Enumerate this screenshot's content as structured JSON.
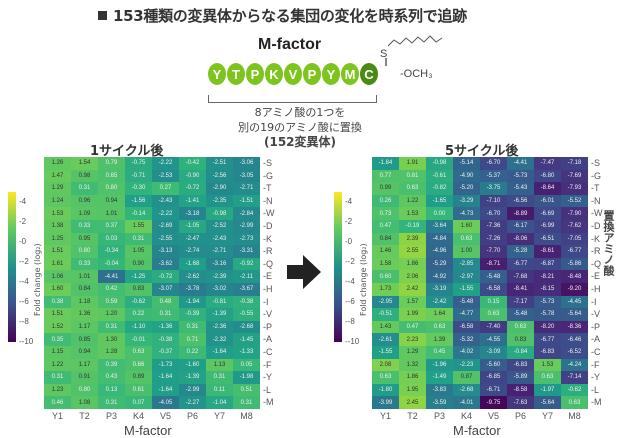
{
  "header": {
    "title": "153種類の変異体からなる集団の変化を時系列で追跡"
  },
  "peptide": {
    "name": "M-factor",
    "residues": [
      "Y",
      "T",
      "P",
      "K",
      "V",
      "P",
      "Y",
      "M"
    ],
    "terminal_residue": "C",
    "s_label": "S",
    "methyl_label": "-OCH₃",
    "note_line1": "8アミノ酸の1つを",
    "note_line2": "別の19のアミノ酸に置換",
    "note_line3": "(152変異体)"
  },
  "arrow_icon": "right-arrow",
  "side_label": "置換アミノ酸",
  "chart_data": [
    {
      "type": "heatmap",
      "title": "1サイクル後",
      "xlabel": "M-factor",
      "ylabel": "置換アミノ酸",
      "colorbar_label": "Fold change (log₂)",
      "colorbar_ticks": [
        "4",
        "2",
        "0",
        "-2",
        "-4",
        "-6",
        "-8",
        "-10"
      ],
      "colorbar_range": [
        -10,
        5
      ],
      "colormap": "viridis",
      "x": [
        "Y1",
        "T2",
        "P3",
        "K4",
        "V5",
        "P6",
        "Y7",
        "M8"
      ],
      "y": [
        "S",
        "G",
        "T",
        "N",
        "W",
        "D",
        "K",
        "R",
        "Q",
        "E",
        "H",
        "I",
        "V",
        "P",
        "A",
        "C",
        "F",
        "Y",
        "L",
        "M"
      ],
      "values": [
        [
          1.26,
          1.54,
          0.79,
          -0.75,
          -2.22,
          -0.42,
          -2.51,
          -3.06
        ],
        [
          1.47,
          0.98,
          0.65,
          -0.71,
          -2.53,
          -0.9,
          -2.56,
          -3.05
        ],
        [
          1.29,
          0.31,
          0.8,
          -0.3,
          0.27,
          -0.72,
          -2.9,
          -2.71
        ],
        [
          1.24,
          0.96,
          0.94,
          -1.56,
          -2.43,
          -1.41,
          -2.35,
          -1.51
        ],
        [
          1.53,
          1.09,
          1.01,
          -0.14,
          -2.22,
          -3.18,
          -0.98,
          -2.84
        ],
        [
          1.38,
          0.33,
          0.37,
          1.55,
          -2.69,
          -1.05,
          -2.52,
          -2.99
        ],
        [
          1.25,
          0.95,
          0.03,
          0.31,
          -2.55,
          -2.47,
          -2.43,
          -2.73
        ],
        [
          1.51,
          0.8,
          -0.34,
          1.05,
          -3.13,
          -2.74,
          -2.71,
          -3.31
        ],
        [
          1.61,
          0.33,
          -0.04,
          0.9,
          -3.62,
          -1.68,
          -3.16,
          -0.92
        ],
        [
          1.06,
          1.01,
          -4.41,
          -1.25,
          -0.72,
          -2.62,
          -2.39,
          -2.11
        ],
        [
          1.6,
          0.84,
          0.42,
          0.83,
          -3.07,
          -3.78,
          -3.02,
          -3.67
        ],
        [
          0.38,
          1.18,
          0.59,
          -0.62,
          0.48,
          -1.94,
          -0.81,
          -0.38
        ],
        [
          1.51,
          1.36,
          1.2,
          0.22,
          0.31,
          -0.39,
          -1.39,
          -0.55
        ],
        [
          1.52,
          1.17,
          0.31,
          -1.1,
          -1.36,
          0.31,
          -2.36,
          -2.68
        ],
        [
          0.35,
          0.85,
          1.3,
          -0.01,
          -0.38,
          0.71,
          -2.32,
          -1.45
        ],
        [
          1.15,
          0.94,
          1.28,
          0.63,
          -0.37,
          0.22,
          -1.64,
          -1.33
        ],
        [
          1.22,
          1.17,
          0.39,
          0.66,
          -1.73,
          -1.6,
          1.13,
          0.05
        ],
        [
          0.31,
          0.91,
          0.43,
          0.89,
          -1.64,
          -1.39,
          0.31,
          -1.98
        ],
        [
          1.23,
          0.8,
          0.13,
          0.61,
          -1.64,
          -2.99,
          0.11,
          0.51
        ],
        [
          0.46,
          1.08,
          0.31,
          0.07,
          -4.05,
          -2.27,
          -1.04,
          0.31
        ]
      ]
    },
    {
      "type": "heatmap",
      "title": "5サイクル後",
      "xlabel": "M-factor",
      "ylabel": "置換アミノ酸",
      "colorbar_label": "Fold change (log₂)",
      "colorbar_ticks": [
        "4",
        "2",
        "0",
        "-2",
        "-4",
        "-6",
        "-8",
        "-10"
      ],
      "colorbar_range": [
        -10,
        5
      ],
      "colormap": "viridis",
      "x": [
        "Y1",
        "T2",
        "P3",
        "K4",
        "V5",
        "P6",
        "Y7",
        "M8"
      ],
      "y": [
        "S",
        "G",
        "T",
        "N",
        "W",
        "D",
        "K",
        "R",
        "Q",
        "E",
        "H",
        "I",
        "V",
        "P",
        "A",
        "C",
        "F",
        "Y",
        "L",
        "M"
      ],
      "values": [
        [
          -1.84,
          1.91,
          -0.98,
          -5.14,
          -6.7,
          -4.41,
          -7.47,
          -7.18
        ],
        [
          0.77,
          0.81,
          -0.61,
          -4.9,
          -5.37,
          -5.73,
          -6.8,
          -7.69
        ],
        [
          0.99,
          0.63,
          -0.82,
          -5.2,
          -3.75,
          -5.43,
          -8.64,
          -7.93
        ],
        [
          0.26,
          1.22,
          -1.65,
          -3.29,
          -7.1,
          -6.56,
          -6.01,
          -5.52
        ],
        [
          0.73,
          1.53,
          -0.0,
          -4.73,
          -6.7,
          -8.89,
          -6.69,
          -7.9
        ],
        [
          0.47,
          -0.19,
          -3.64,
          1.6,
          -7.36,
          -6.17,
          -6.99,
          -7.62
        ],
        [
          0.84,
          2.39,
          -4.84,
          0.63,
          -7.26,
          -8.06,
          -6.51,
          -7.05
        ],
        [
          1.46,
          2.55,
          -4.96,
          1.0,
          -7.7,
          -5.28,
          -8.61,
          -6.77
        ],
        [
          1.58,
          1.86,
          -5.29,
          -2.85,
          -8.71,
          -6.77,
          -6.87,
          -5.86
        ],
        [
          0.6,
          2.06,
          -4.92,
          -2.97,
          -5.48,
          -7.68,
          -8.21,
          -8.48
        ],
        [
          1.73,
          2.42,
          -3.19,
          -1.55,
          -6.58,
          -8.41,
          -8.15,
          -9.2
        ],
        [
          -2.95,
          1.57,
          -2.42,
          -5.48,
          0.15,
          -7.17,
          -5.73,
          -4.45
        ],
        [
          -0.51,
          1.99,
          1.64,
          -4.77,
          0.63,
          -5.48,
          -5.78,
          -5.64
        ],
        [
          1.43,
          0.47,
          0.63,
          -6.58,
          -7.4,
          0.63,
          -8.2,
          -8.36
        ],
        [
          -2.61,
          2.23,
          1.39,
          -5.32,
          -4.55,
          0.83,
          -6.77,
          -6.46
        ],
        [
          -1.55,
          1.29,
          0.45,
          -4.02,
          -3.09,
          -0.84,
          -6.83,
          -6.52
        ],
        [
          2.08,
          1.32,
          -1.96,
          -2.23,
          -5.6,
          -6.83,
          1.53,
          -4.24
        ],
        [
          0.63,
          1.86,
          -1.49,
          0.87,
          -6.85,
          -5.89,
          0.63,
          -7.14
        ],
        [
          -1.8,
          1.95,
          -3.83,
          -2.68,
          -6.71,
          -8.58,
          -1.97,
          -0.62
        ],
        [
          -3.99,
          2.45,
          -3.59,
          -4.01,
          -9.75,
          -7.63,
          -5.64,
          0.63
        ]
      ]
    }
  ]
}
